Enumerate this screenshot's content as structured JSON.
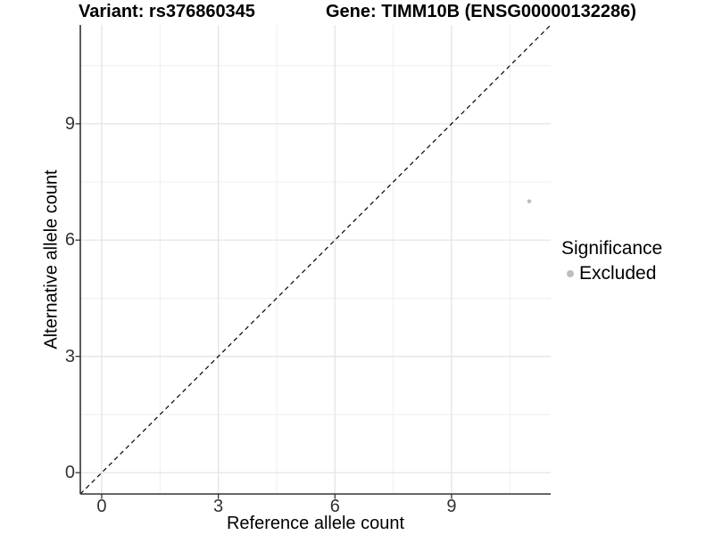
{
  "titles": {
    "variant": "Variant: rs376860345",
    "gene": "Gene: TIMM10B (ENSG00000132286)"
  },
  "axes": {
    "x": {
      "label": "Reference allele count",
      "ticks": [
        0,
        3,
        6,
        9
      ]
    },
    "y": {
      "label": "Alternative allele count",
      "ticks": [
        0,
        3,
        6,
        9
      ]
    }
  },
  "legend": {
    "title": "Significance",
    "items": [
      {
        "label": "Excluded",
        "color": "#bebebe"
      }
    ]
  },
  "colors": {
    "point": "#bebebe",
    "grid_major": "#e4e4e4",
    "grid_minor": "#efefef",
    "axis_line": "#333333",
    "tick_mark": "#333333",
    "dashed_line": "#000000",
    "background": "#ffffff"
  },
  "chart_data": {
    "type": "scatter",
    "title": "Variant: rs376860345 | Gene: TIMM10B (ENSG00000132286)",
    "xlabel": "Reference allele count",
    "ylabel": "Alternative allele count",
    "xlim": [
      -0.55,
      11.55
    ],
    "ylim": [
      -0.55,
      11.55
    ],
    "x_major_ticks": [
      0,
      3,
      6,
      9
    ],
    "y_major_ticks": [
      0,
      3,
      6,
      9
    ],
    "x_minor_ticks": [
      1.5,
      4.5,
      7.5,
      10.5
    ],
    "y_minor_ticks": [
      1.5,
      4.5,
      7.5,
      10.5
    ],
    "grid": true,
    "legend_position": "right",
    "legend_title": "Significance",
    "series": [
      {
        "name": "Excluded",
        "color": "#bebebe",
        "points": [
          {
            "x": 11,
            "y": 7
          }
        ]
      }
    ],
    "reference_line": {
      "type": "identity",
      "slope": 1,
      "intercept": 0,
      "style": "dashed",
      "color": "#000000"
    }
  }
}
